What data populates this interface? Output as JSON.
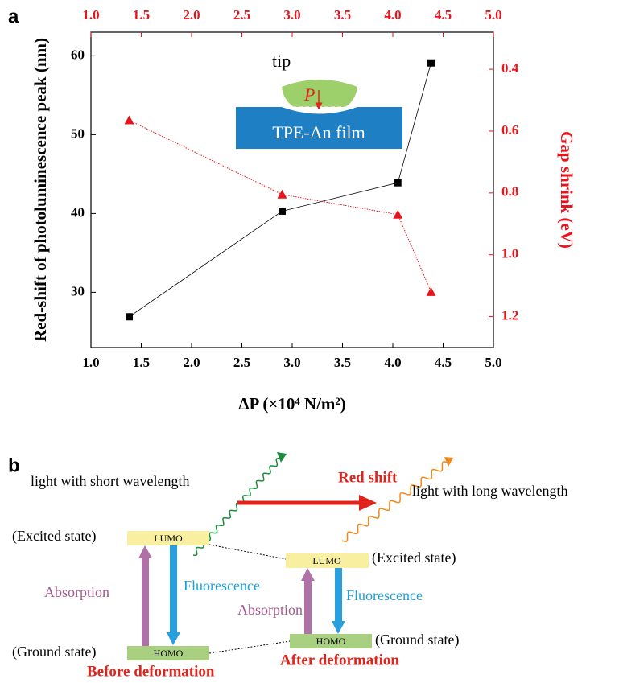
{
  "panel_labels": {
    "a": "a",
    "b": "b"
  },
  "chart_data": {
    "type": "line",
    "xlabel": "ΔP (×10⁴ N/m²)",
    "ylabel": "Red-shift of photoluminescence peak (nm)",
    "y2label": "Gap shrink (eV)",
    "xlim": [
      1.0,
      5.0
    ],
    "xticks": [
      {
        "value": 1.0,
        "label": "1.0"
      },
      1.5,
      {
        "value": 2.0,
        "label": "2.0"
      },
      2.5,
      {
        "value": 3.0,
        "label": "3.0"
      },
      3.5,
      {
        "value": 4.0,
        "label": "4.0"
      },
      4.5,
      {
        "value": 5.0,
        "label": "5.0"
      }
    ],
    "x2lim": [
      1.0,
      5.0
    ],
    "x2ticks": [
      {
        "value": 1.0,
        "label": "1.0"
      },
      1.5,
      {
        "value": 2.0,
        "label": "2.0"
      },
      2.5,
      {
        "value": 3.0,
        "label": "3.0"
      },
      3.5,
      {
        "value": 4.0,
        "label": "4.0"
      },
      4.5,
      {
        "value": 5.0,
        "label": "5.0"
      }
    ],
    "ylim": [
      23,
      63
    ],
    "yticks": [
      30,
      40,
      50,
      60
    ],
    "y2lim": [
      1.3,
      0.28
    ],
    "y2ticks": [
      0.4,
      0.6,
      0.8,
      {
        "value": 1.0,
        "label": "1.0"
      },
      1.2
    ],
    "series": [
      {
        "color": "#000000",
        "marker": "square",
        "linestyle": "solid",
        "x": [
          1.38,
          2.9,
          4.05,
          4.38
        ],
        "values": [
          26.9,
          40.3,
          43.9,
          59.1
        ]
      },
      {
        "color": "#e8141c",
        "marker": "triangle",
        "linestyle": "dotted",
        "axis": "y2",
        "x": [
          1.38,
          2.9,
          4.05,
          4.38
        ],
        "values": [
          0.565,
          0.805,
          0.87,
          1.12
        ]
      }
    ],
    "inset": {
      "tip": "tip",
      "force": "P",
      "film": "TPE-An film"
    }
  },
  "diagram": {
    "short_light": "light with short wavelength",
    "red_shift": "Red shift",
    "long_light": "light with long wavelength",
    "before": {
      "excited": "(Excited state)",
      "lumo": "LUMO",
      "absorption": "Absorption",
      "fluorescence": "Fluorescence",
      "homo": "HOMO",
      "ground": "(Ground state)",
      "caption": "Before deformation"
    },
    "after": {
      "excited": "(Excited state)",
      "lumo": "LUMO",
      "absorption": "Absorption",
      "fluorescence": "Fluorescence",
      "homo": "HOMO",
      "ground": "(Ground state)",
      "caption": "After deformation"
    }
  }
}
